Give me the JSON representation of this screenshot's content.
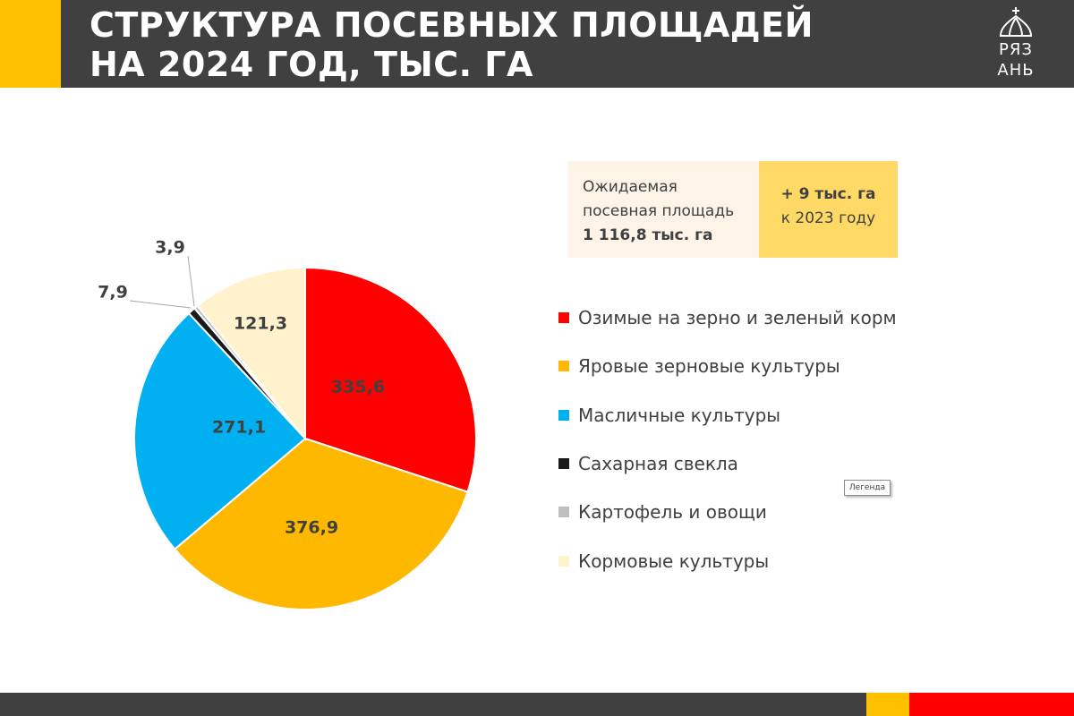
{
  "header": {
    "title_line1": "Структура посевных площадей",
    "title_line2": "на 2024 год, тыс. га",
    "logo_text_top": "РЯЗ",
    "logo_text_bottom": "АНЬ"
  },
  "info": {
    "left_line1": "Ожидаемая",
    "left_line2": "посевная площадь",
    "left_value": "1 116,8 тыс. га",
    "right_value": "+ 9 тыс. га",
    "right_line": "к 2023 году"
  },
  "legend_tag": "Легенда",
  "colors": {
    "header_bg": "#404040",
    "accent_yellow": "#FFC000",
    "accent_red": "#FF0000"
  },
  "chart_data": {
    "type": "pie",
    "slices": [
      {
        "name": "Озимые на зерно и зеленый корм",
        "value": 335.6,
        "label": "335,6",
        "color": "#FF0000"
      },
      {
        "name": "Яровые зерновые культуры",
        "value": 376.9,
        "label": "376,9",
        "color": "#FFB800"
      },
      {
        "name": "Масличные культуры",
        "value": 271.1,
        "label": "271,1",
        "color": "#00B0F0"
      },
      {
        "name": "Сахарная свекла",
        "value": 7.9,
        "label": "7,9",
        "color": "#1a1a1a"
      },
      {
        "name": "Картофель и овощи",
        "value": 3.9,
        "label": "3,9",
        "color": "#BFBFBF"
      },
      {
        "name": "Кормовые культуры",
        "value": 121.3,
        "label": "121,3",
        "color": "#FFF2CC"
      }
    ],
    "start": "12 o'clock",
    "direction": "clockwise",
    "legend_position": "right"
  }
}
